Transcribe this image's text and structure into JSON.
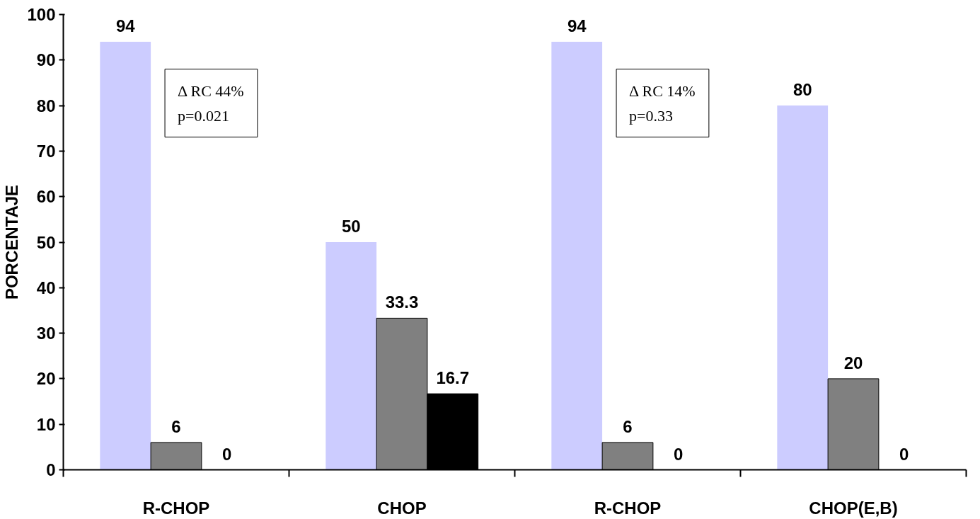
{
  "chart_data": {
    "type": "bar",
    "ylabel": "PORCENTAJE",
    "categories": [
      "R-CHOP",
      "CHOP",
      "R-CHOP",
      "CHOP(E,B)"
    ],
    "series": [
      {
        "color": "#ccccff",
        "values": [
          94,
          50,
          94,
          80
        ]
      },
      {
        "color": "#808080",
        "values": [
          6,
          33.3,
          6,
          20
        ]
      },
      {
        "color": "#000000",
        "values": [
          0,
          16.7,
          0,
          0
        ]
      }
    ],
    "ylim": [
      0,
      100
    ],
    "yticks": [
      0,
      10,
      20,
      30,
      40,
      50,
      60,
      70,
      80,
      90,
      100
    ],
    "data_labels": true,
    "grid": false,
    "annotations": [
      "Δ RC 44%\np=0.021",
      "Δ RC 14%\np=0.33"
    ]
  }
}
